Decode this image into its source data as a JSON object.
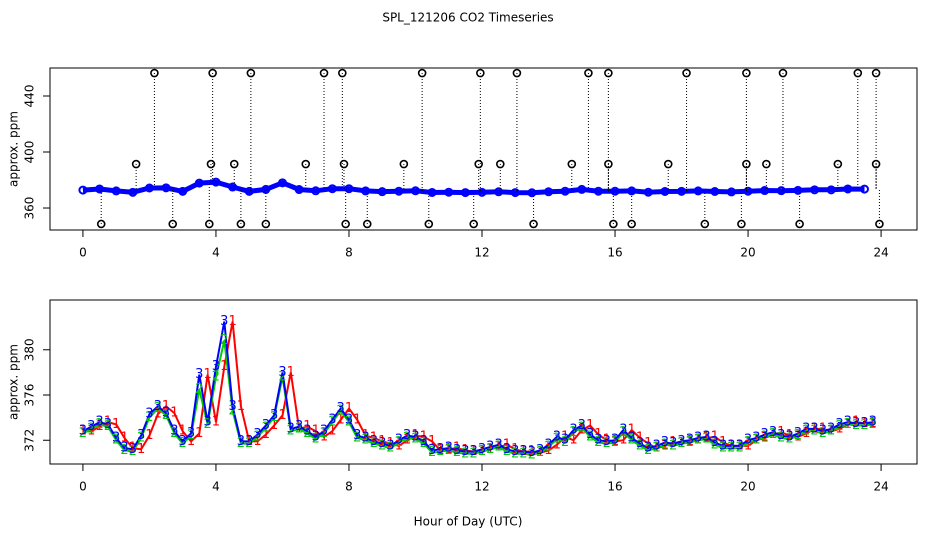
{
  "chart_data": [
    {
      "type": "scatter",
      "title": "SPL_121206  CO2 Timeseries",
      "ylabel": "approx. ppm",
      "xlim": [
        -0.99,
        25.08
      ],
      "ylim": [
        344.3,
        460
      ],
      "xticks": [
        0,
        4,
        8,
        12,
        16,
        20,
        24
      ],
      "yticks": [
        360,
        400,
        440
      ],
      "series": [
        {
          "color": "#0000ff",
          "line": true,
          "x": [
            0,
            0.5,
            1,
            1.5,
            2,
            2.5,
            3,
            3.5,
            4,
            4.5,
            5,
            5.5,
            6,
            6.5,
            7,
            7.5,
            8,
            8.5,
            9,
            9.5,
            10,
            10.5,
            11,
            11.5,
            12,
            12.5,
            13,
            13.5,
            14,
            14.5,
            15,
            15.5,
            16,
            16.5,
            17,
            17.5,
            18,
            18.5,
            19,
            19.5,
            20,
            20.5,
            21,
            21.5,
            22,
            22.5,
            23,
            23.5
          ],
          "values": [
            372.8,
            373.6,
            372.2,
            371.2,
            374.3,
            374.4,
            371.9,
            377.8,
            378.5,
            375.0,
            371.9,
            373.3,
            378.0,
            373.2,
            372.3,
            373.8,
            373.8,
            372.2,
            371.7,
            372.0,
            372.3,
            371.1,
            371.3,
            371.0,
            371.2,
            371.6,
            371.0,
            370.9,
            371.6,
            372.0,
            373.3,
            372.0,
            372.0,
            372.2,
            371.3,
            371.8,
            371.9,
            372.2,
            371.8,
            371.5,
            372.0,
            372.5,
            372.4,
            372.6,
            373.0,
            373.0,
            373.6,
            373.5
          ]
        },
        {
          "color": "#000000",
          "stems": true,
          "x": [
            2.15,
            3.9,
            5.05,
            7.25,
            7.8,
            10.2,
            11.95,
            13.05,
            15.2,
            15.8,
            18.15,
            19.95,
            21.05,
            23.3,
            23.85,
            1.6,
            3.85,
            4.55,
            6.7,
            7.85,
            9.65,
            11.9,
            12.55,
            14.7,
            15.8,
            17.6,
            19.95,
            20.55,
            22.7,
            23.85,
            0.55,
            2.7,
            3.8,
            4.75,
            5.5,
            7.9,
            8.55,
            10.4,
            11.75,
            13.55,
            15.95,
            16.5,
            18.7,
            19.8,
            21.55,
            23.95
          ],
          "values": [
            456.4,
            456.4,
            456.4,
            456.4,
            456.4,
            456.4,
            456.4,
            456.4,
            456.4,
            456.4,
            456.4,
            456.4,
            456.4,
            456.4,
            456.4,
            391.4,
            391.4,
            391.4,
            391.4,
            391.4,
            391.4,
            391.4,
            391.4,
            391.4,
            391.4,
            391.4,
            391.4,
            391.4,
            391.4,
            391.4,
            348.6,
            348.6,
            348.6,
            348.6,
            348.6,
            348.6,
            348.6,
            348.6,
            348.6,
            348.6,
            348.6,
            348.6,
            348.6,
            348.6,
            348.6,
            348.6
          ]
        }
      ]
    },
    {
      "type": "line",
      "ylabel": "approx. ppm",
      "xlabel": "Hour of Day (UTC)",
      "xlim": [
        -0.99,
        25.08
      ],
      "ylim": [
        369.9,
        384.4
      ],
      "xticks": [
        0,
        4,
        8,
        12,
        16,
        20,
        24
      ],
      "yticks": [
        372,
        376,
        380
      ],
      "x": [
        0,
        0.25,
        0.5,
        0.75,
        1,
        1.25,
        1.5,
        1.75,
        2,
        2.25,
        2.5,
        2.75,
        3,
        3.25,
        3.5,
        3.75,
        4,
        4.25,
        4.5,
        4.75,
        5,
        5.25,
        5.5,
        5.75,
        6,
        6.25,
        6.5,
        6.75,
        7,
        7.25,
        7.5,
        7.75,
        8,
        8.25,
        8.5,
        8.75,
        9,
        9.25,
        9.5,
        9.75,
        10,
        10.25,
        10.5,
        10.75,
        11,
        11.25,
        11.5,
        11.75,
        12,
        12.25,
        12.5,
        12.75,
        13,
        13.25,
        13.5,
        13.75,
        14,
        14.25,
        14.5,
        14.75,
        15,
        15.25,
        15.5,
        15.75,
        16,
        16.25,
        16.5,
        16.75,
        17,
        17.25,
        17.5,
        17.75,
        18,
        18.25,
        18.5,
        18.75,
        19,
        19.25,
        19.5,
        19.75,
        20,
        20.25,
        20.5,
        20.75,
        21,
        21.25,
        21.5,
        21.75,
        22,
        22.25,
        22.5,
        22.75,
        23,
        23.25,
        23.5,
        23.75
      ],
      "series": [
        {
          "name": "1",
          "color": "#ff0000",
          "values": [
            372.8,
            372.8,
            373.2,
            373.6,
            373.4,
            372.2,
            371.3,
            371.2,
            372.4,
            374.3,
            375.0,
            374.4,
            372.8,
            371.9,
            372.6,
            377.8,
            373.6,
            378.5,
            382.5,
            375.0,
            371.9,
            371.9,
            372.5,
            373.3,
            374.2,
            378.0,
            373.0,
            373.2,
            372.8,
            372.3,
            372.8,
            373.8,
            374.8,
            373.8,
            372.4,
            372.2,
            371.9,
            371.7,
            371.5,
            372.0,
            372.4,
            372.3,
            371.9,
            371.1,
            371.2,
            371.3,
            371.1,
            371.0,
            371.0,
            371.2,
            371.4,
            371.6,
            371.2,
            371.0,
            371.0,
            370.9,
            371.1,
            371.6,
            372.3,
            372.0,
            372.9,
            373.3,
            372.5,
            372.0,
            371.9,
            372.0,
            372.9,
            372.2,
            371.7,
            371.3,
            371.5,
            371.8,
            371.7,
            371.9,
            372.0,
            372.2,
            372.3,
            371.8,
            371.5,
            371.5,
            371.5,
            372.0,
            372.2,
            372.5,
            372.7,
            372.4,
            372.3,
            372.6,
            373.0,
            373.0,
            372.8,
            373.0,
            373.4,
            373.6,
            373.5,
            373.5
          ]
        },
        {
          "name": "2",
          "color": "#00cd00",
          "values": [
            372.6,
            373.0,
            373.4,
            373.2,
            372.0,
            371.1,
            371.0,
            372.2,
            374.0,
            374.8,
            374.2,
            372.6,
            371.7,
            372.4,
            376.5,
            373.4,
            377.6,
            380.8,
            374.6,
            371.7,
            371.7,
            372.3,
            373.1,
            374.0,
            377.6,
            372.8,
            373.0,
            372.6,
            372.1,
            372.6,
            373.6,
            374.6,
            373.6,
            372.2,
            372.0,
            371.7,
            371.5,
            371.3,
            371.8,
            372.2,
            372.1,
            371.7,
            370.9,
            371.0,
            371.1,
            370.9,
            370.8,
            370.8,
            371.0,
            371.2,
            371.4,
            371.0,
            370.8,
            370.8,
            370.7,
            370.9,
            371.4,
            372.1,
            371.8,
            372.7,
            373.1,
            372.3,
            371.8,
            371.7,
            371.8,
            372.7,
            372.0,
            371.5,
            371.1,
            371.3,
            371.6,
            371.5,
            371.7,
            371.8,
            372.0,
            372.1,
            371.6,
            371.3,
            371.3,
            371.3,
            371.8,
            372.0,
            372.3,
            372.5,
            372.2,
            372.1,
            372.4,
            372.8,
            372.8,
            372.6,
            372.8,
            373.2,
            373.4,
            373.3,
            373.3,
            373.4
          ]
        },
        {
          "name": "3",
          "color": "#0000ff",
          "values": [
            372.8,
            373.2,
            373.6,
            373.4,
            372.2,
            371.3,
            371.2,
            372.4,
            374.3,
            375.0,
            374.4,
            372.8,
            371.9,
            372.6,
            377.8,
            373.6,
            378.5,
            382.5,
            375.0,
            371.9,
            371.9,
            372.5,
            373.3,
            374.2,
            378.0,
            373.0,
            373.2,
            372.8,
            372.3,
            372.8,
            373.8,
            374.8,
            373.8,
            372.4,
            372.2,
            371.9,
            371.7,
            371.5,
            372.0,
            372.4,
            372.3,
            371.9,
            371.1,
            371.2,
            371.3,
            371.1,
            371.0,
            371.0,
            371.2,
            371.4,
            371.6,
            371.2,
            371.0,
            371.0,
            370.9,
            371.1,
            371.6,
            372.3,
            372.0,
            372.9,
            373.3,
            372.5,
            372.0,
            371.9,
            372.0,
            372.9,
            372.2,
            371.7,
            371.3,
            371.5,
            371.8,
            371.7,
            371.9,
            372.0,
            372.2,
            372.3,
            371.8,
            371.5,
            371.5,
            371.5,
            372.0,
            372.2,
            372.5,
            372.7,
            372.4,
            372.3,
            372.6,
            373.0,
            373.0,
            372.8,
            373.0,
            373.4,
            373.6,
            373.5,
            373.5,
            373.6
          ]
        }
      ]
    }
  ]
}
